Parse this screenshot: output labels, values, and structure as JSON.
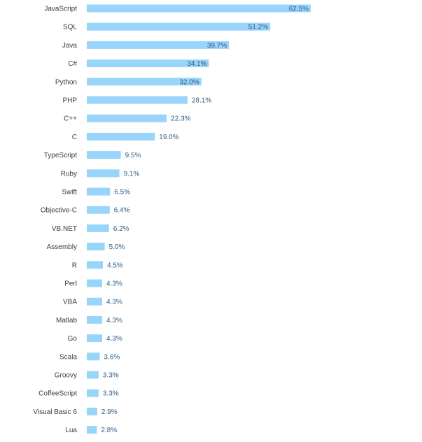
{
  "chart_data": {
    "type": "bar",
    "orientation": "horizontal",
    "title": "",
    "xlabel": "",
    "ylabel": "",
    "grid": false,
    "legend": "none",
    "bar_color": "#99d4fb",
    "value_label_color": "#2d5d86",
    "category_label_color": "#3a3a3a",
    "value_suffix": "%",
    "xlim": [
      0,
      62.5
    ],
    "categories": [
      "JavaScript",
      "SQL",
      "Java",
      "C#",
      "Python",
      "PHP",
      "C++",
      "C",
      "TypeScript",
      "Ruby",
      "Swift",
      "Objective-C",
      "VB.NET",
      "Assembly",
      "R",
      "Perl",
      "VBA",
      "Matlab",
      "Go",
      "Scala",
      "Groovy",
      "CoffeeScript",
      "Visual Basic 6",
      "Lua"
    ],
    "values": [
      62.5,
      51.2,
      39.7,
      34.1,
      32.0,
      28.1,
      22.3,
      19.0,
      9.5,
      9.1,
      6.5,
      6.4,
      6.2,
      5.0,
      4.5,
      4.3,
      4.3,
      4.3,
      4.3,
      3.6,
      3.3,
      3.3,
      2.9,
      2.8
    ],
    "value_labels": [
      "62.5%",
      "51.2%",
      "39.7%",
      "34.1%",
      "32.0%",
      "28.1%",
      "22.3%",
      "19.0%",
      "9.5%",
      "9.1%",
      "6.5%",
      "6.4%",
      "6.2%",
      "5.0%",
      "4.5%",
      "4.3%",
      "4.3%",
      "4.3%",
      "4.3%",
      "3.6%",
      "3.3%",
      "3.3%",
      "2.9%",
      "2.8%"
    ]
  }
}
